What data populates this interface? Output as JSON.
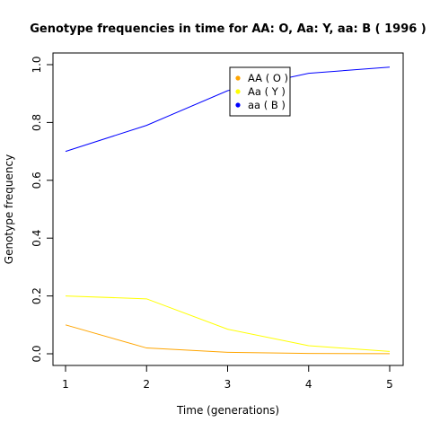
{
  "chart_data": {
    "type": "line",
    "title": "Genotype frequencies in time for  AA: O, Aa: Y, aa: B  ( 1996 )",
    "xlabel": "Time (generations)",
    "ylabel": "Genotype frequency",
    "x": [
      1,
      2,
      3,
      4,
      5
    ],
    "xticks": [
      "1",
      "2",
      "3",
      "4",
      "5"
    ],
    "yticks": [
      "0.0",
      "0.2",
      "0.4",
      "0.6",
      "0.8",
      "1.0"
    ],
    "xlim": [
      1,
      5
    ],
    "ylim": [
      0,
      1
    ],
    "grid": false,
    "legend_position": "top-right",
    "series": [
      {
        "name": "AA ( O )",
        "color": "#ffa500",
        "values": [
          0.1,
          0.02,
          0.005,
          0.001,
          0.0005
        ]
      },
      {
        "name": "Aa ( Y )",
        "color": "#ffff00",
        "values": [
          0.2,
          0.19,
          0.085,
          0.028,
          0.008
        ]
      },
      {
        "name": "aa ( B )",
        "color": "#0000ff",
        "values": [
          0.7,
          0.79,
          0.91,
          0.97,
          0.9915
        ]
      }
    ]
  }
}
